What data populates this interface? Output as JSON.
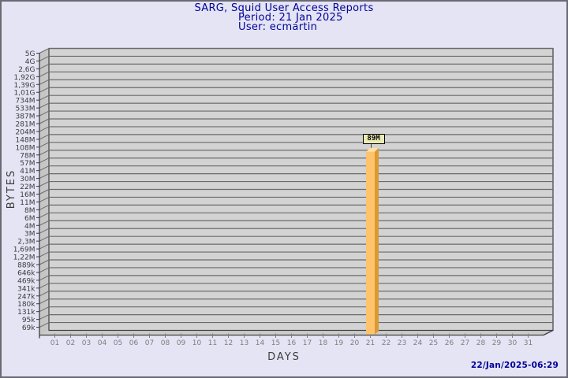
{
  "header": {
    "title": "SARG, Squid User Access Reports",
    "period": "Period: 21 Jan 2025",
    "user": "User: ecmartin"
  },
  "footer": {
    "generated": "22/Jan/2025-06:29"
  },
  "chart_data": {
    "type": "bar",
    "style": "3d-vertical-bars",
    "title": "SARG, Squid User Access Reports",
    "subtitle": [
      "Period: 21 Jan 2025",
      "User: ecmartin"
    ],
    "xlabel": "DAYS",
    "ylabel": "BYTES",
    "y_scale": "log",
    "grid": true,
    "x_categories": [
      "01",
      "02",
      "03",
      "04",
      "05",
      "06",
      "07",
      "08",
      "09",
      "10",
      "11",
      "12",
      "13",
      "14",
      "15",
      "16",
      "17",
      "18",
      "19",
      "20",
      "21",
      "22",
      "23",
      "24",
      "25",
      "26",
      "27",
      "28",
      "29",
      "30",
      "31"
    ],
    "y_tick_labels": [
      "5G",
      "4G",
      "2,6G",
      "1,92G",
      "1,39G",
      "1,01G",
      "734M",
      "533M",
      "387M",
      "281M",
      "204M",
      "148M",
      "108M",
      "78M",
      "57M",
      "41M",
      "30M",
      "22M",
      "16M",
      "11M",
      "8M",
      "6M",
      "4M",
      "3M",
      "2,3M",
      "1,69M",
      "1,22M",
      "889k",
      "646k",
      "469k",
      "341k",
      "247k",
      "180k",
      "131k",
      "95k",
      "69k"
    ],
    "bars": [
      {
        "x": "21",
        "value_label": "89M",
        "value_bytes": 89000000
      }
    ],
    "colors": {
      "page_bg": "#e4e4f4",
      "border": "#6a6a74",
      "title": "#000099",
      "plot_bg": "#d3d3d3",
      "grid_line": "#6b6b6b",
      "wall": "#c6c6c6",
      "floor": "#cccccc",
      "axis_line": "#3f3f3f",
      "y_tick_text": "#3b3b3b",
      "x_tick_text": "#7d7d7d",
      "bar_front": "#ffc36b",
      "bar_side": "#d99a33",
      "bar_top": "#ffdfa4",
      "bar_label_bg": "#eaeab4",
      "timestamp": "#000099"
    }
  }
}
